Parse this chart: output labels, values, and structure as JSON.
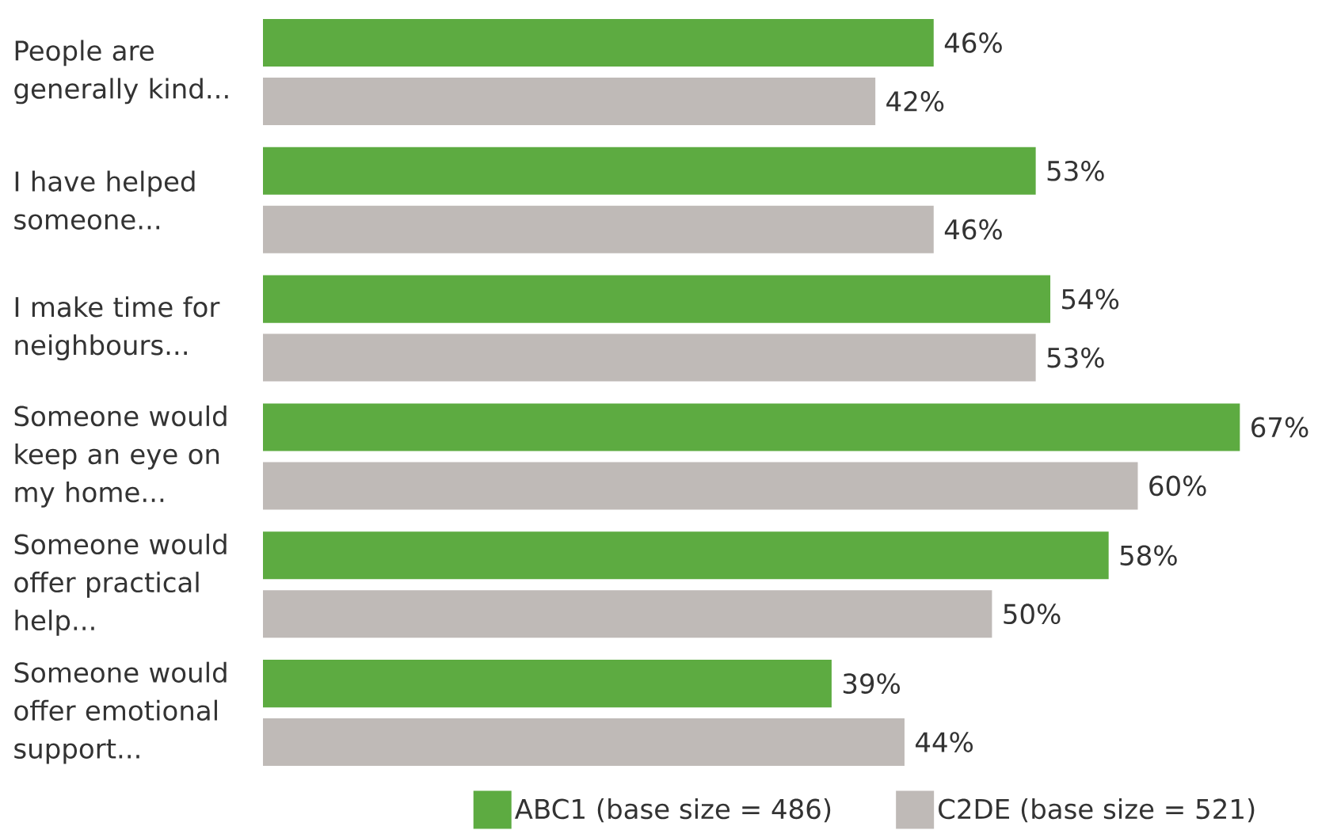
{
  "chart_data": {
    "type": "bar",
    "orientation": "horizontal",
    "categories": [
      "People are generally kind...",
      "I have helped someone...",
      "I make time for neighbours...",
      "Someone would keep an eye on my home...",
      "Someone would offer practical help...",
      "Someone would offer emotional support..."
    ],
    "series": [
      {
        "name": "ABC1 (base size = 486)",
        "color": "#5dab41",
        "values": [
          46,
          53,
          54,
          67,
          58,
          39
        ],
        "value_labels": [
          "46%",
          "53%",
          "54%",
          "67%",
          "58%",
          "39%"
        ]
      },
      {
        "name": "C2DE (base size = 521)",
        "color": "#bfbab7",
        "values": [
          42,
          46,
          53,
          60,
          50,
          44
        ],
        "value_labels": [
          "42%",
          "46%",
          "53%",
          "60%",
          "50%",
          "44%"
        ]
      }
    ],
    "legend": "bottom"
  }
}
